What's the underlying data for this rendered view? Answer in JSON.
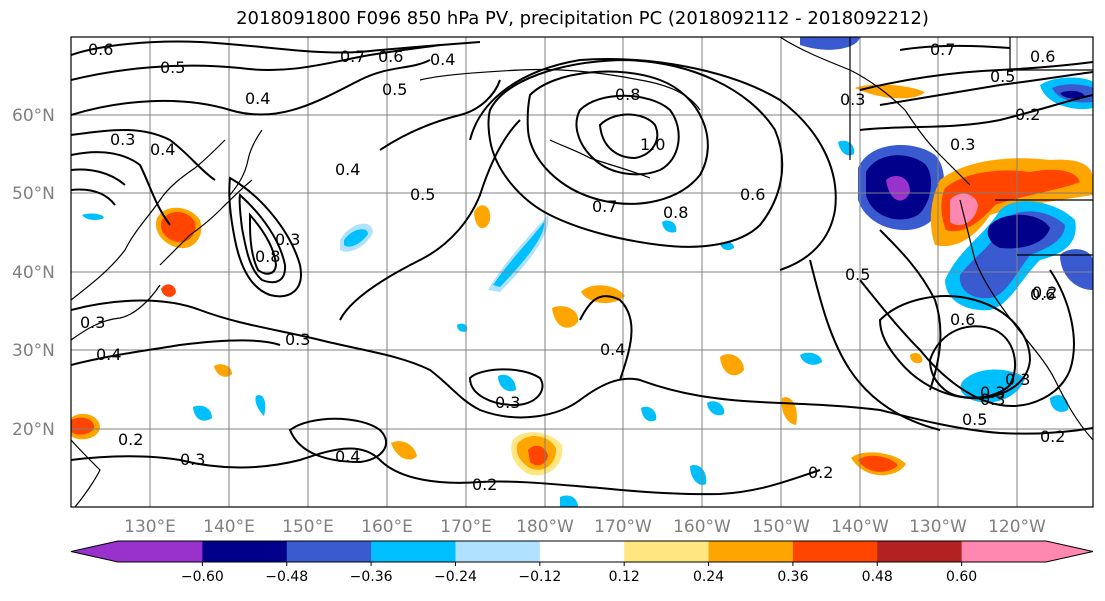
{
  "title": "2018091800 F096 850 hPa PV, precipitation PC (2018092112 - 2018092212)",
  "lat_labels": [
    "60°N",
    "50°N",
    "40°N",
    "30°N",
    "20°N"
  ],
  "lon_labels": [
    "130°E",
    "140°E",
    "150°E",
    "160°E",
    "170°E",
    "180°W",
    "170°W",
    "160°W",
    "150°W",
    "140°W",
    "130°W",
    "120°W"
  ],
  "colorbar": {
    "colors": [
      "#9932CC",
      "#00008B",
      "#3A5BD0",
      "#00BFFF",
      "#B0E2FF",
      "#FFFFFF",
      "#FFE680",
      "#FFA500",
      "#FF4500",
      "#B22222",
      "#FF88B0"
    ],
    "ticks": [
      "−0.60",
      "−0.48",
      "−0.36",
      "−0.24",
      "−0.12",
      "0.12",
      "0.24",
      "0.36",
      "0.48",
      "0.60"
    ]
  },
  "contour_labels": [
    "0.6",
    "0.5",
    "0.4",
    "0.7",
    "0.6",
    "0.4",
    "0.5",
    "0.8",
    "0.3",
    "0.7",
    "0.6",
    "0.5",
    "0.2",
    "0.3",
    "0.4",
    "0.3",
    "0.4",
    "0.5",
    "0.7",
    "0.8",
    "1.0",
    "0.8",
    "0.6",
    "0.3",
    "0.4",
    "0.6",
    "0.3",
    "0.3",
    "0.4",
    "0.5",
    "0.6",
    "0.2",
    "0.3",
    "0.3",
    "0.4",
    "0.3",
    "0.2",
    "0.3",
    "0.2",
    "0.2",
    "0.5",
    "0.3",
    "0.2"
  ]
}
